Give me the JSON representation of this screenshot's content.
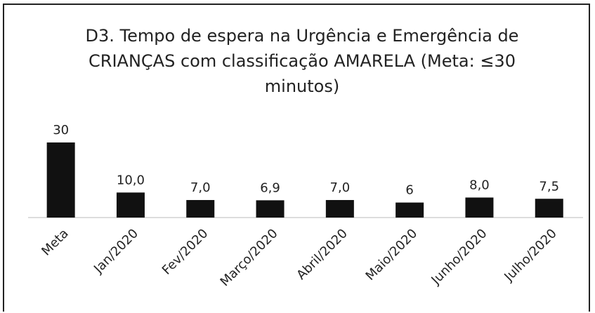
{
  "chart_data": {
    "type": "bar",
    "title": "D3. Tempo de espera na Urgência e Emergência de CRIANÇAS com classificação AMARELA (Meta: ≤30 minutos)",
    "categories": [
      "Meta",
      "Jan/2020",
      "Fev/2020",
      "Março/2020",
      "Abril/2020",
      "Maio/2020",
      "Junho/2020",
      "Julho/2020"
    ],
    "values": [
      30,
      10.0,
      7.0,
      6.9,
      7.0,
      6,
      8.0,
      7.5
    ],
    "value_labels": [
      "30",
      "10,0",
      "7,0",
      "6,9",
      "7,0",
      "6",
      "8,0",
      "7,5"
    ],
    "color": "#111111"
  }
}
